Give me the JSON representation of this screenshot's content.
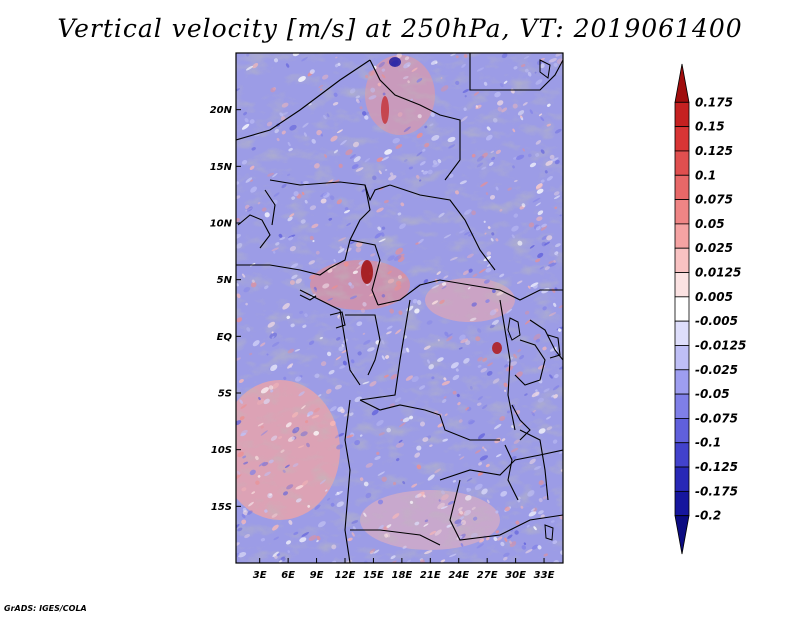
{
  "title": "Vertical velocity [m/s] at 250hPa, VT: 2019061400",
  "credit": "GrADS: IGES/COLA",
  "map": {
    "lat_labels": [
      "20N",
      "15N",
      "10N",
      "5N",
      "EQ",
      "5S",
      "10S",
      "15S"
    ],
    "lat_values": [
      20,
      15,
      10,
      5,
      0,
      -5,
      -10,
      -15
    ],
    "lat_range": [
      -20,
      25
    ],
    "lon_labels": [
      "3E",
      "6E",
      "9E",
      "12E",
      "15E",
      "18E",
      "21E",
      "24E",
      "27E",
      "30E",
      "33E"
    ],
    "lon_values": [
      3,
      6,
      9,
      12,
      15,
      18,
      21,
      24,
      27,
      30,
      33
    ],
    "lon_range": [
      0.5,
      35
    ],
    "field": "vertical velocity at 250hPa"
  },
  "legend": {
    "labels": [
      "0.175",
      "0.15",
      "0.125",
      "0.1",
      "0.075",
      "0.05",
      "0.025",
      "0.0125",
      "0.005",
      "-0.005",
      "-0.0125",
      "-0.025",
      "-0.05",
      "-0.075",
      "-0.1",
      "-0.125",
      "-0.175",
      "-0.2"
    ],
    "colors": [
      "#a00d0d",
      "#c52121",
      "#d83535",
      "#e04f4f",
      "#e86868",
      "#ef8585",
      "#f5a3a3",
      "#f8c2c2",
      "#fbe2e2",
      "#ffffff",
      "#dedefb",
      "#bfbff6",
      "#9e9ef0",
      "#7f7fe8",
      "#6060dc",
      "#4242cc",
      "#2828b6",
      "#16169e",
      "#0c0c82"
    ]
  }
}
